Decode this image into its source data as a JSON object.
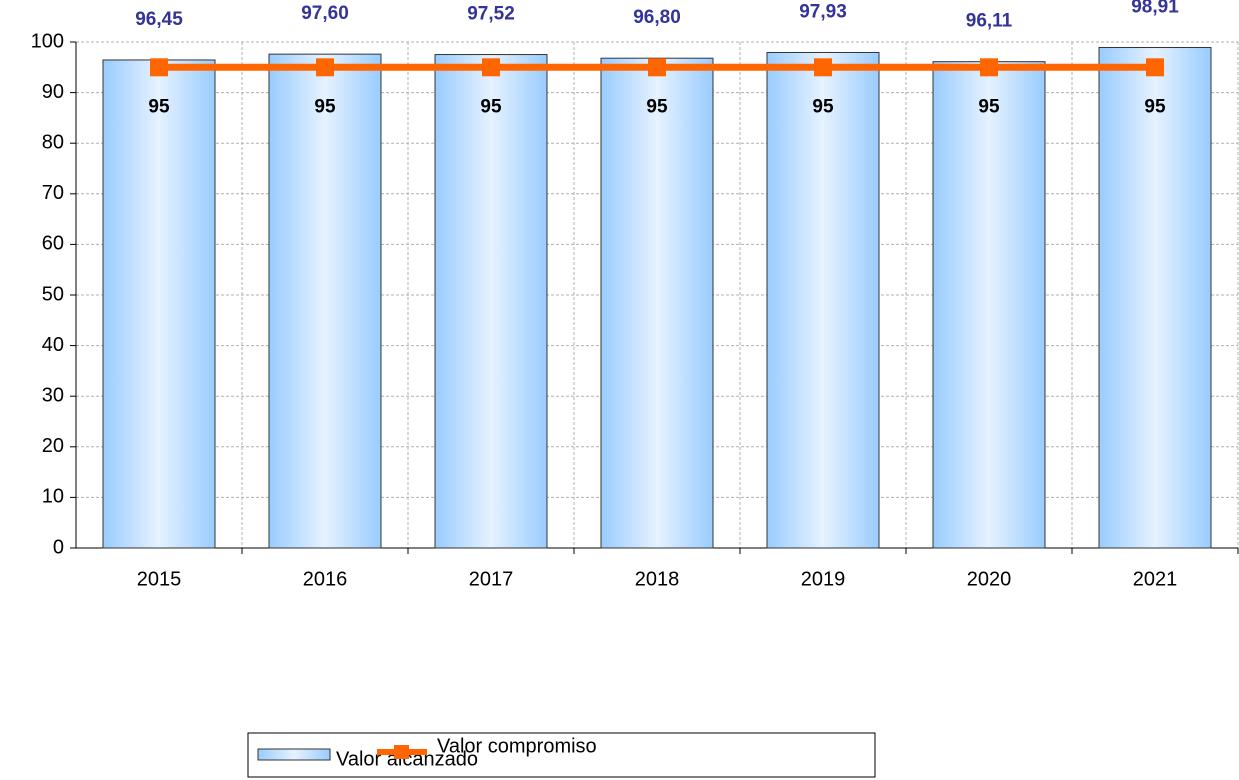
{
  "chart_data": {
    "type": "bar",
    "categories": [
      "2015",
      "2016",
      "2017",
      "2018",
      "2019",
      "2020",
      "2021"
    ],
    "series": [
      {
        "name": "Valor alcanzado",
        "type": "bar",
        "color": "#99ccff",
        "values": [
          96.45,
          97.6,
          97.52,
          96.8,
          97.93,
          96.11,
          98.91
        ],
        "value_labels": [
          "96,45",
          "97,60",
          "97,52",
          "96,80",
          "97,93",
          "96,11",
          "98,91"
        ]
      },
      {
        "name": "Valor compromiso",
        "type": "line",
        "color": "#ff6600",
        "values": [
          95,
          95,
          95,
          95,
          95,
          95,
          95
        ]
      }
    ],
    "ylim": [
      0,
      100
    ],
    "yticks": [
      0,
      10,
      20,
      30,
      40,
      50,
      60,
      70,
      80,
      90,
      100
    ],
    "grid": true,
    "legend": "bottom"
  }
}
